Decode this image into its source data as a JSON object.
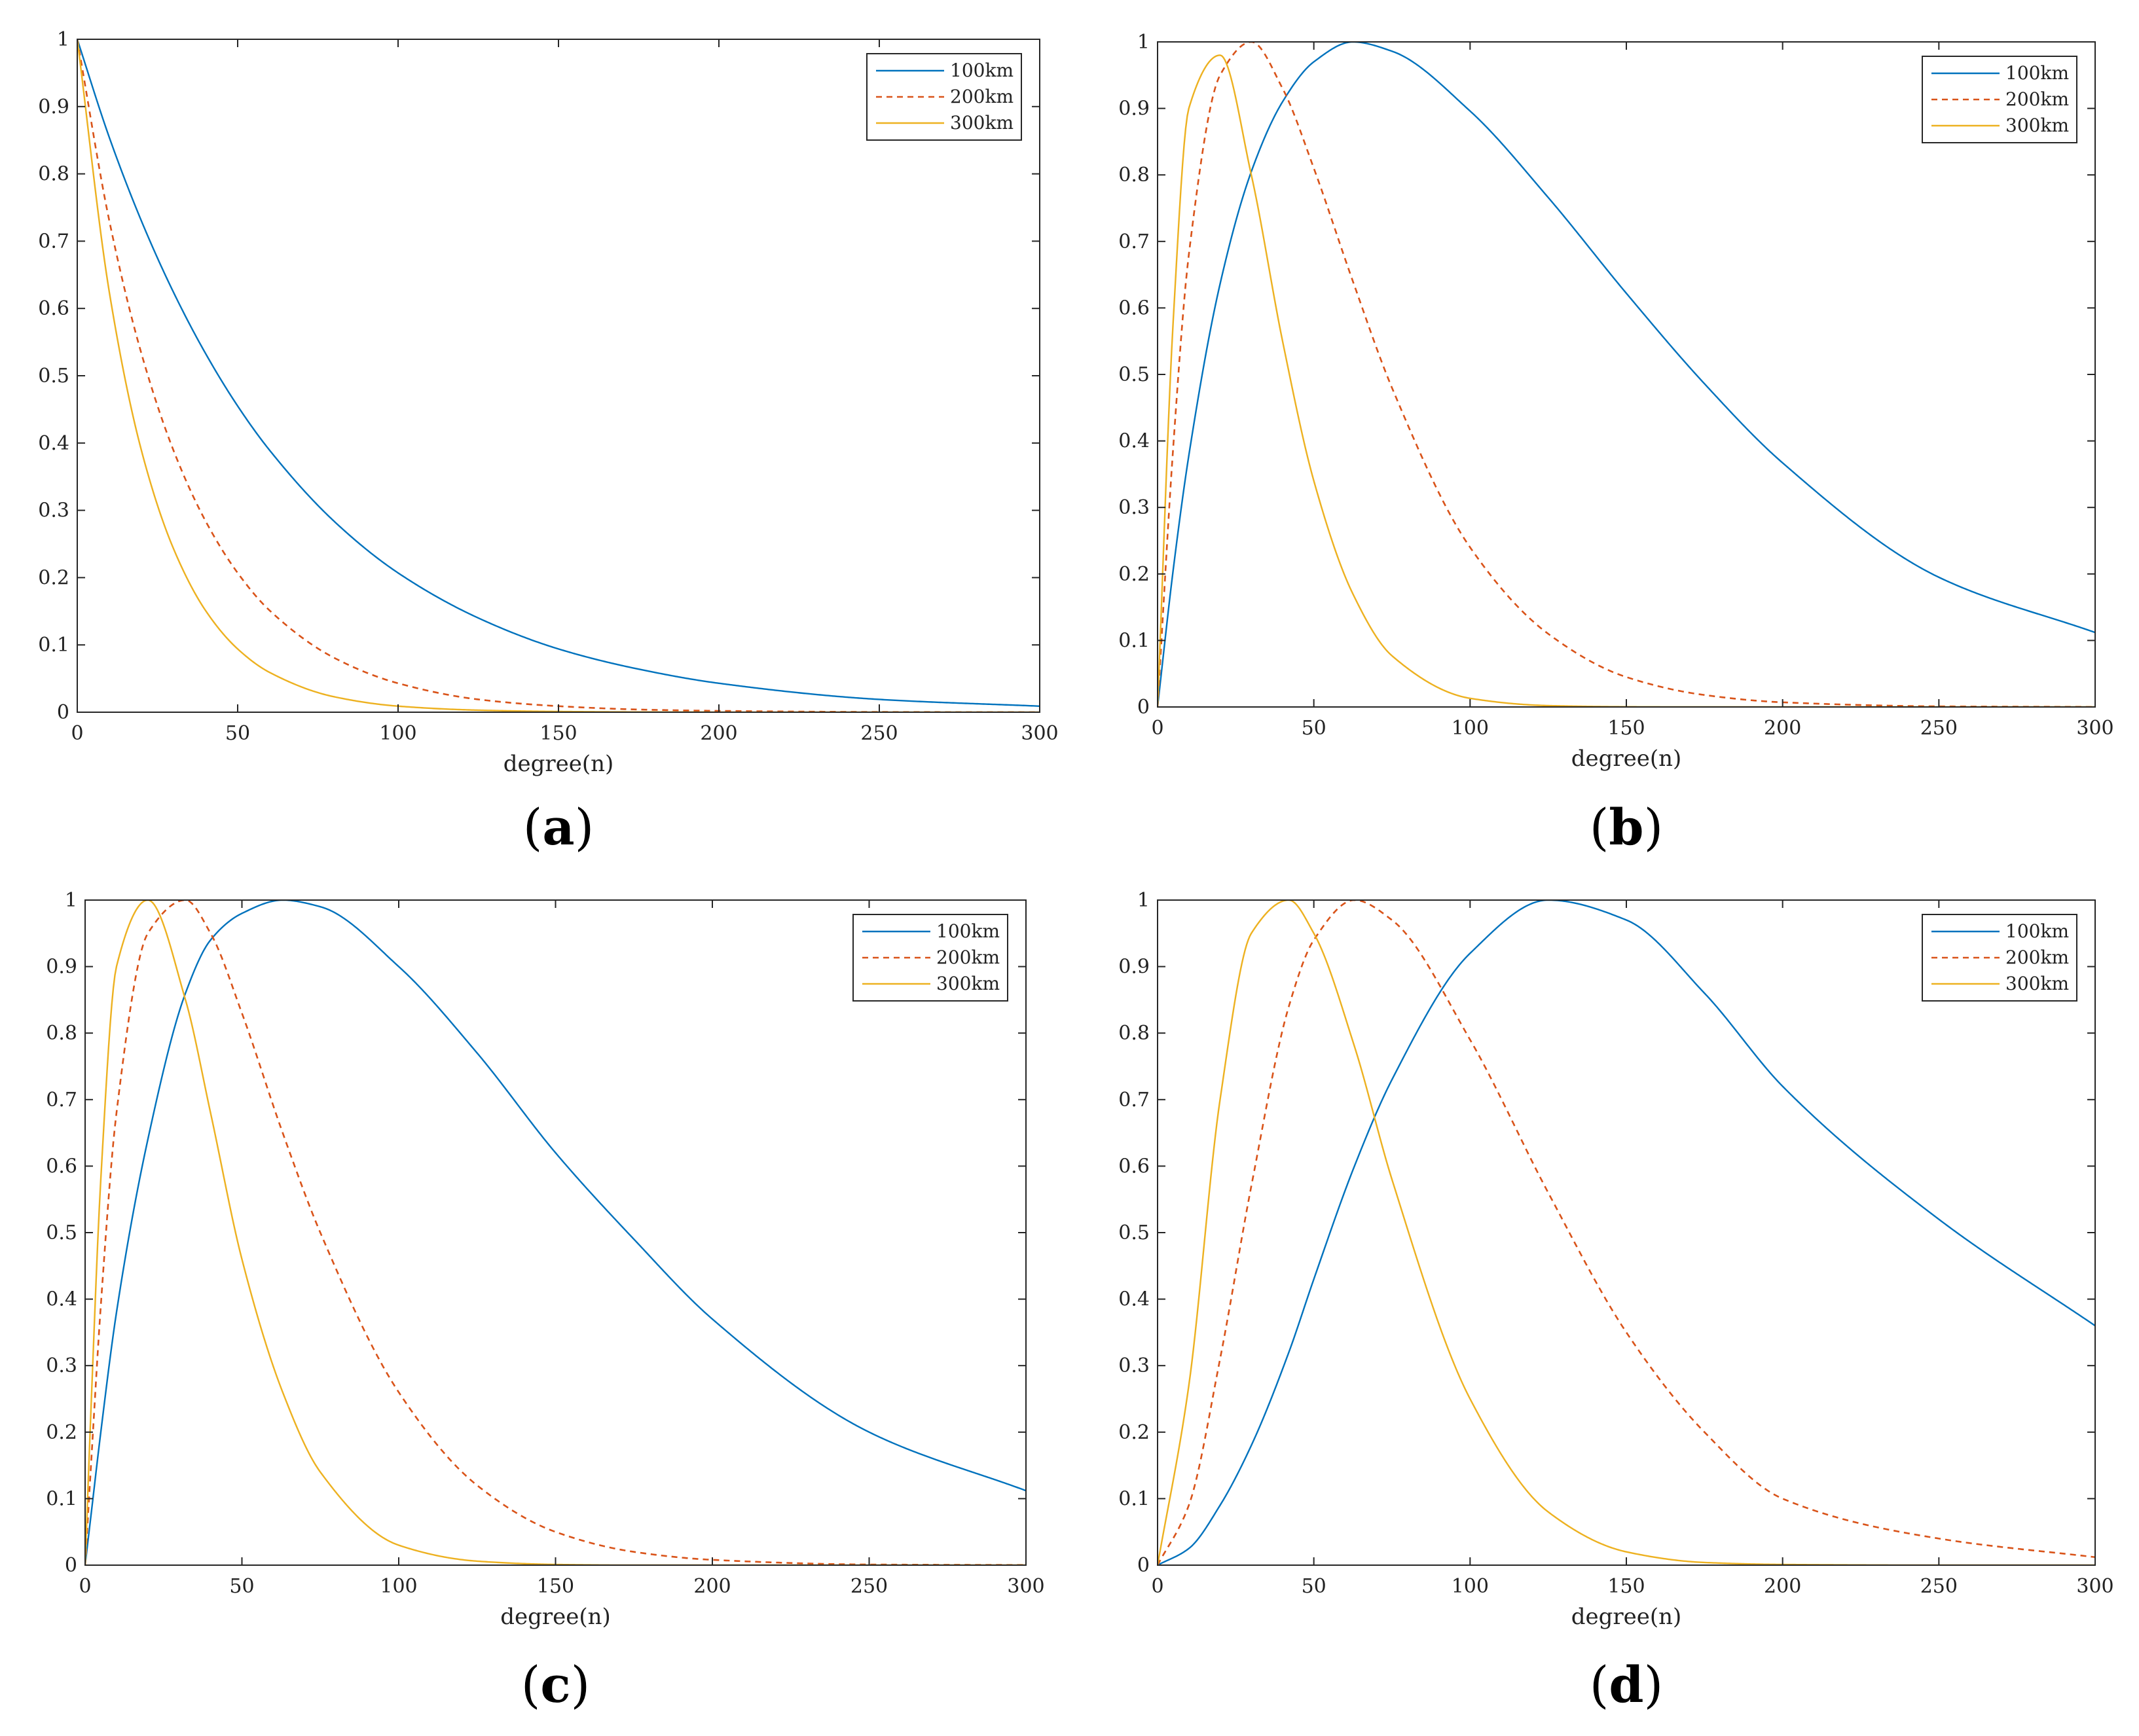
{
  "chart_data": [
    {
      "type": "line",
      "panel_label": "(a)",
      "panel_letter": "a",
      "title": "",
      "xlabel": "degree(n)",
      "ylabel": "",
      "xlim": [
        0,
        300
      ],
      "ylim": [
        0,
        1
      ],
      "xticks": [
        "0",
        "50",
        "100",
        "150",
        "200",
        "250",
        "300"
      ],
      "yticks": [
        "0",
        "0.1",
        "0.2",
        "0.3",
        "0.4",
        "0.5",
        "0.6",
        "0.7",
        "0.8",
        "0.9",
        "1"
      ],
      "grid": false,
      "legend": "top-right",
      "x": [
        0,
        10,
        20,
        30,
        40,
        50,
        60,
        80,
        100,
        125,
        150,
        175,
        200,
        250,
        300
      ],
      "series": [
        {
          "name": "100km",
          "color": "#0072BD",
          "dash": "solid",
          "values": [
            1,
            0.854,
            0.73,
            0.624,
            0.533,
            0.455,
            0.389,
            0.284,
            0.207,
            0.14,
            0.094,
            0.064,
            0.043,
            0.019,
            0.009
          ]
        },
        {
          "name": "200km",
          "color": "#D95319",
          "dash": "dashed",
          "values": [
            1,
            0.73,
            0.533,
            0.389,
            0.284,
            0.207,
            0.151,
            0.081,
            0.043,
            0.019,
            0.009,
            0.004,
            0.002,
            0.0004,
            0.0001
          ]
        },
        {
          "name": "300km",
          "color": "#EDB120",
          "dash": "solid",
          "values": [
            1,
            0.624,
            0.389,
            0.243,
            0.151,
            0.094,
            0.059,
            0.023,
            0.009,
            0.003,
            0.001,
            0.0003,
            0.0001,
            0,
            0
          ]
        }
      ]
    },
    {
      "type": "line",
      "panel_label": "(b)",
      "panel_letter": "b",
      "title": "",
      "xlabel": "degree(n)",
      "ylabel": "",
      "xlim": [
        0,
        300
      ],
      "ylim": [
        0,
        1
      ],
      "xticks": [
        "0",
        "50",
        "100",
        "150",
        "200",
        "250",
        "300"
      ],
      "yticks": [
        "0",
        "0.1",
        "0.2",
        "0.3",
        "0.4",
        "0.5",
        "0.6",
        "0.7",
        "0.8",
        "0.9",
        "1"
      ],
      "grid": false,
      "legend": "top-right",
      "x": [
        0,
        5,
        10,
        20,
        30,
        40,
        50,
        62.5,
        75,
        100,
        125,
        150,
        175,
        200,
        250,
        300
      ],
      "series": [
        {
          "name": "100km",
          "color": "#0072BD",
          "dash": "solid",
          "values": [
            0,
            0.206,
            0.378,
            0.636,
            0.805,
            0.91,
            0.97,
            1,
            0.986,
            0.896,
            0.766,
            0.622,
            0.486,
            0.367,
            0.195,
            0.112
          ]
        },
        {
          "name": "200km",
          "color": "#D95319",
          "dash": "dashed",
          "values": [
            0,
            0.39,
            0.68,
            0.95,
            1,
            0.93,
            0.81,
            0.64,
            0.48,
            0.24,
            0.11,
            0.045,
            0.018,
            0.007,
            0.001,
            0.0002
          ]
        },
        {
          "name": "300km",
          "color": "#EDB120",
          "dash": "solid",
          "values": [
            0,
            0.58,
            0.9,
            0.98,
            0.8,
            0.55,
            0.34,
            0.17,
            0.077,
            0.013,
            0.002,
            0.0003,
            0,
            0,
            0,
            0
          ]
        }
      ]
    },
    {
      "type": "line",
      "panel_label": "(c)",
      "panel_letter": "c",
      "title": "",
      "xlabel": "degree(n)",
      "ylabel": "",
      "xlim": [
        0,
        300
      ],
      "ylim": [
        0,
        1
      ],
      "xticks": [
        "0",
        "50",
        "100",
        "150",
        "200",
        "250",
        "300"
      ],
      "yticks": [
        "0",
        "0.1",
        "0.2",
        "0.3",
        "0.4",
        "0.5",
        "0.6",
        "0.7",
        "0.8",
        "0.9",
        "1"
      ],
      "grid": false,
      "legend": "top-right",
      "x": [
        0,
        2,
        5,
        10,
        20,
        32,
        40,
        50,
        63,
        75,
        100,
        125,
        150,
        175,
        200,
        250,
        300
      ],
      "series": [
        {
          "name": "100km",
          "color": "#0072BD",
          "dash": "solid",
          "values": [
            0,
            0.08,
            0.2,
            0.38,
            0.64,
            0.86,
            0.94,
            0.98,
            1,
            0.99,
            0.9,
            0.77,
            0.62,
            0.49,
            0.37,
            0.2,
            0.112
          ]
        },
        {
          "name": "200km",
          "color": "#D95319",
          "dash": "dashed",
          "values": [
            0,
            0.16,
            0.39,
            0.68,
            0.95,
            1,
            0.95,
            0.83,
            0.65,
            0.5,
            0.26,
            0.12,
            0.05,
            0.02,
            0.008,
            0.001,
            0.0003
          ]
        },
        {
          "name": "300km",
          "color": "#EDB120",
          "dash": "solid",
          "values": [
            0,
            0.25,
            0.58,
            0.9,
            1,
            0.85,
            0.68,
            0.46,
            0.26,
            0.14,
            0.03,
            0.006,
            0.001,
            0,
            0,
            0,
            0
          ]
        }
      ]
    },
    {
      "type": "line",
      "panel_label": "(d)",
      "panel_letter": "d",
      "title": "",
      "xlabel": "degree(n)",
      "ylabel": "",
      "xlim": [
        0,
        300
      ],
      "ylim": [
        0,
        1
      ],
      "xticks": [
        "0",
        "50",
        "100",
        "150",
        "200",
        "250",
        "300"
      ],
      "yticks": [
        "0",
        "0.1",
        "0.2",
        "0.3",
        "0.4",
        "0.5",
        "0.6",
        "0.7",
        "0.8",
        "0.9",
        "1"
      ],
      "grid": false,
      "legend": "top-right",
      "x": [
        0,
        10,
        20,
        30,
        42,
        50,
        63,
        75,
        100,
        125,
        150,
        175,
        200,
        250,
        300
      ],
      "series": [
        {
          "name": "100km",
          "color": "#0072BD",
          "dash": "solid",
          "values": [
            0,
            0.025,
            0.09,
            0.18,
            0.32,
            0.43,
            0.6,
            0.73,
            0.92,
            1,
            0.97,
            0.86,
            0.72,
            0.52,
            0.36
          ]
        },
        {
          "name": "200km",
          "color": "#D95319",
          "dash": "dashed",
          "values": [
            0,
            0.09,
            0.31,
            0.57,
            0.84,
            0.94,
            1,
            0.97,
            0.79,
            0.56,
            0.35,
            0.2,
            0.1,
            0.04,
            0.012
          ]
        },
        {
          "name": "300km",
          "color": "#EDB120",
          "dash": "solid",
          "values": [
            0,
            0.27,
            0.7,
            0.95,
            1,
            0.95,
            0.78,
            0.58,
            0.25,
            0.08,
            0.02,
            0.004,
            0.001,
            0,
            0
          ]
        }
      ]
    }
  ]
}
